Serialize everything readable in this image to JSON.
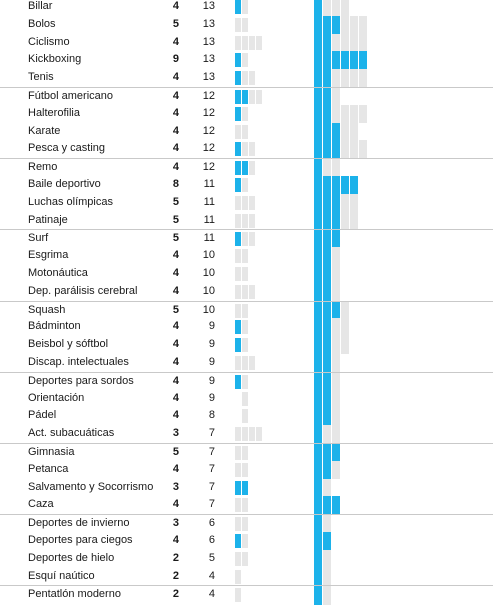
{
  "colors": {
    "blue": "#1cb2ea",
    "grey": "#e6e6e6",
    "text": "#1a1a1a",
    "line": "#c9c9c9"
  },
  "chart_data": {
    "type": "table",
    "rows": [
      {
        "name": "Billar",
        "v1": 4,
        "v2": 13,
        "a": 2,
        "a_blue": 1,
        "a_offset": 0,
        "b": 4,
        "b_blue": 1
      },
      {
        "name": "Bolos",
        "v1": 5,
        "v2": 13,
        "a": 2,
        "a_blue": 0,
        "a_offset": 0,
        "b": 6,
        "b_blue": 3
      },
      {
        "name": "Ciclismo",
        "v1": 4,
        "v2": 13,
        "a": 4,
        "a_blue": 0,
        "a_offset": 0,
        "b": 6,
        "b_blue": 2
      },
      {
        "name": "Kickboxing",
        "v1": 9,
        "v2": 13,
        "a": 2,
        "a_blue": 1,
        "a_offset": 0,
        "b": 6,
        "b_blue": 6
      },
      {
        "name": "Tenis",
        "v1": 4,
        "v2": 13,
        "a": 3,
        "a_blue": 1,
        "a_offset": 0,
        "b": 6,
        "b_blue": 2
      },
      {
        "name": "Fútbol americano",
        "v1": 4,
        "v2": 12,
        "a": 4,
        "a_blue": 2,
        "a_offset": 0,
        "b": 3,
        "b_blue": 2
      },
      {
        "name": "Halterofilia",
        "v1": 4,
        "v2": 12,
        "a": 2,
        "a_blue": 1,
        "a_offset": 0,
        "b": 6,
        "b_blue": 2
      },
      {
        "name": "Karate",
        "v1": 4,
        "v2": 12,
        "a": 2,
        "a_blue": 0,
        "a_offset": 0,
        "b": 5,
        "b_blue": 3
      },
      {
        "name": "Pesca y casting",
        "v1": 4,
        "v2": 12,
        "a": 3,
        "a_blue": 1,
        "a_offset": 0,
        "b": 6,
        "b_blue": 3
      },
      {
        "name": "Remo",
        "v1": 4,
        "v2": 12,
        "a": 3,
        "a_blue": 2,
        "a_offset": 0,
        "b": 3,
        "b_blue": 1
      },
      {
        "name": "Baile deportivo",
        "v1": 8,
        "v2": 11,
        "a": 2,
        "a_blue": 1,
        "a_offset": 0,
        "b": 5,
        "b_blue": 5
      },
      {
        "name": "Luchas olímpicas",
        "v1": 5,
        "v2": 11,
        "a": 3,
        "a_blue": 0,
        "a_offset": 0,
        "b": 5,
        "b_blue": 3
      },
      {
        "name": "Patinaje",
        "v1": 5,
        "v2": 11,
        "a": 3,
        "a_blue": 0,
        "a_offset": 0,
        "b": 5,
        "b_blue": 3
      },
      {
        "name": "Surf",
        "v1": 5,
        "v2": 11,
        "a": 3,
        "a_blue": 1,
        "a_offset": 0,
        "b": 3,
        "b_blue": 3
      },
      {
        "name": "Esgrima",
        "v1": 4,
        "v2": 10,
        "a": 2,
        "a_blue": 0,
        "a_offset": 0,
        "b": 3,
        "b_blue": 2
      },
      {
        "name": "Motonáutica",
        "v1": 4,
        "v2": 10,
        "a": 2,
        "a_blue": 0,
        "a_offset": 0,
        "b": 3,
        "b_blue": 2
      },
      {
        "name": "Dep. parálisis cerebral",
        "v1": 4,
        "v2": 10,
        "a": 3,
        "a_blue": 0,
        "a_offset": 0,
        "b": 3,
        "b_blue": 2
      },
      {
        "name": "Squash",
        "v1": 5,
        "v2": 10,
        "a": 2,
        "a_blue": 0,
        "a_offset": 0,
        "b": 4,
        "b_blue": 3
      },
      {
        "name": "Bádminton",
        "v1": 4,
        "v2": 9,
        "a": 2,
        "a_blue": 1,
        "a_offset": 0,
        "b": 4,
        "b_blue": 2
      },
      {
        "name": "Beisbol y sóftbol",
        "v1": 4,
        "v2": 9,
        "a": 2,
        "a_blue": 1,
        "a_offset": 0,
        "b": 4,
        "b_blue": 2
      },
      {
        "name": "Discap. intelectuales",
        "v1": 4,
        "v2": 9,
        "a": 3,
        "a_blue": 0,
        "a_offset": 0,
        "b": 3,
        "b_blue": 2
      },
      {
        "name": "Deportes para sordos",
        "v1": 4,
        "v2": 9,
        "a": 2,
        "a_blue": 1,
        "a_offset": 0,
        "b": 3,
        "b_blue": 2
      },
      {
        "name": "Orientación",
        "v1": 4,
        "v2": 9,
        "a": 1,
        "a_blue": 0,
        "a_offset": 1,
        "b": 3,
        "b_blue": 2
      },
      {
        "name": "Pádel",
        "v1": 4,
        "v2": 8,
        "a": 1,
        "a_blue": 0,
        "a_offset": 1,
        "b": 3,
        "b_blue": 2
      },
      {
        "name": "Act. subacuáticas",
        "v1": 3,
        "v2": 7,
        "a": 4,
        "a_blue": 0,
        "a_offset": 0,
        "b": 3,
        "b_blue": 1
      },
      {
        "name": "Gimnasia",
        "v1": 5,
        "v2": 7,
        "a": 2,
        "a_blue": 0,
        "a_offset": 0,
        "b": 3,
        "b_blue": 3
      },
      {
        "name": "Petanca",
        "v1": 4,
        "v2": 7,
        "a": 2,
        "a_blue": 0,
        "a_offset": 0,
        "b": 3,
        "b_blue": 2
      },
      {
        "name": "Salvamento y Socorrismo",
        "v1": 3,
        "v2": 7,
        "a": 2,
        "a_blue": 2,
        "a_offset": 0,
        "b": 2,
        "b_blue": 1
      },
      {
        "name": "Caza",
        "v1": 4,
        "v2": 7,
        "a": 2,
        "a_blue": 0,
        "a_offset": 0,
        "b": 3,
        "b_blue": 3
      },
      {
        "name": "Deportes de invierno",
        "v1": 3,
        "v2": 6,
        "a": 2,
        "a_blue": 0,
        "a_offset": 0,
        "b": 2,
        "b_blue": 1
      },
      {
        "name": "Deportes para ciegos",
        "v1": 4,
        "v2": 6,
        "a": 2,
        "a_blue": 1,
        "a_offset": 0,
        "b": 2,
        "b_blue": 2
      },
      {
        "name": "Deportes de hielo",
        "v1": 2,
        "v2": 5,
        "a": 2,
        "a_blue": 0,
        "a_offset": 0,
        "b": 2,
        "b_blue": 1
      },
      {
        "name": "Esquí naútico",
        "v1": 2,
        "v2": 4,
        "a": 1,
        "a_blue": 0,
        "a_offset": 0,
        "b": 2,
        "b_blue": 1
      },
      {
        "name": "Pentatlón moderno",
        "v1": 2,
        "v2": 4,
        "a": 1,
        "a_blue": 0,
        "a_offset": 0,
        "b": 2,
        "b_blue": 1
      }
    ],
    "separators_before": [
      5,
      9,
      13,
      17,
      21,
      25,
      29,
      33
    ]
  }
}
